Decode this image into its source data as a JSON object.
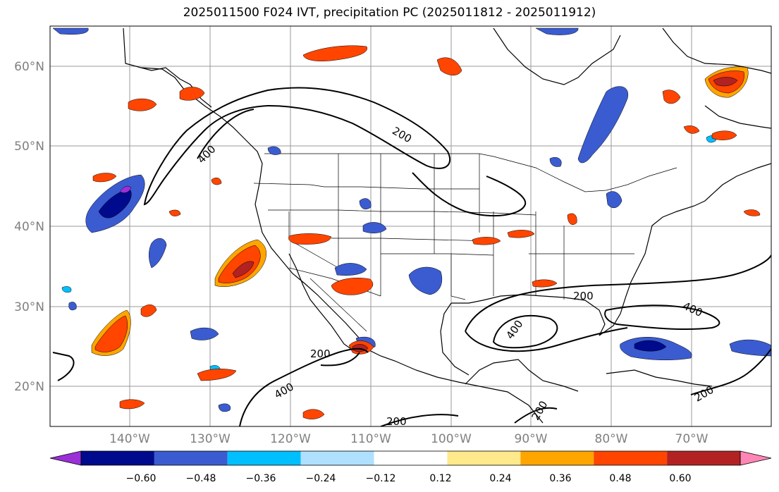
{
  "title": "2025011500 F024 IVT, precipitation PC (2025011812 - 2025011912)",
  "lat_labels": [
    "60°N",
    "50°N",
    "40°N",
    "30°N",
    "20°N"
  ],
  "lon_labels": [
    "140°W",
    "130°W",
    "120°W",
    "110°W",
    "100°W",
    "90°W",
    "80°W",
    "70°W"
  ],
  "contour_labels": [
    "200",
    "400",
    "200",
    "400",
    "200",
    "400",
    "200",
    "400",
    "200",
    "200"
  ],
  "colorbar": {
    "tick_labels": [
      "−0.60",
      "−0.48",
      "−0.36",
      "−0.24",
      "−0.12",
      "0.12",
      "0.24",
      "0.36",
      "0.48",
      "0.60"
    ],
    "colors": [
      "#9b30d8",
      "#000a8c",
      "#3a5cd0",
      "#00bfff",
      "#b0e0ff",
      "#ffffff",
      "#ffe98a",
      "#ffa500",
      "#ff4500",
      "#b22222",
      "#ff86b4"
    ]
  }
}
